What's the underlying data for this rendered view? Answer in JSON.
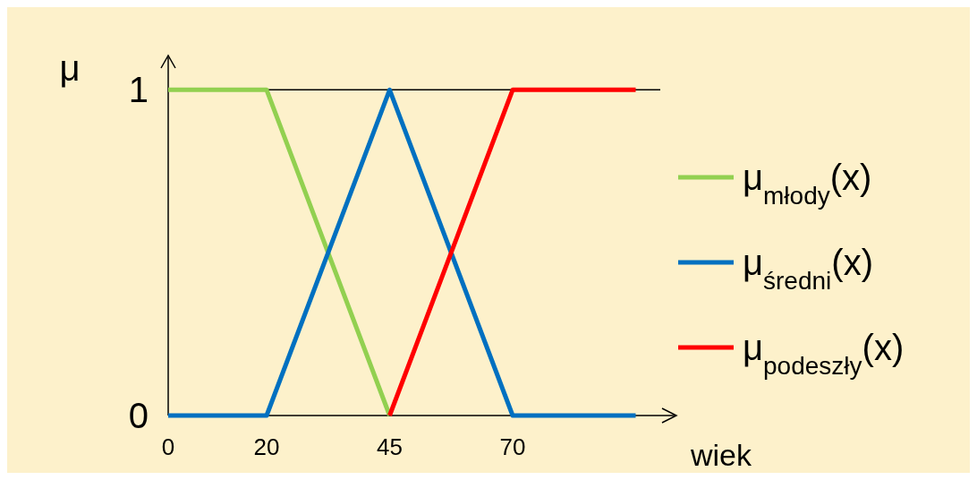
{
  "chart_data": {
    "type": "line",
    "xlabel": "wiek",
    "ylabel": "μ",
    "xlim": [
      0,
      100
    ],
    "xticks": [
      0,
      20,
      45,
      70
    ],
    "ylim": [
      0,
      1.1
    ],
    "yticks": [
      0,
      1
    ],
    "grid": false,
    "legend": "right",
    "line_style": "solid",
    "ref_lines": [
      {
        "axis": "y",
        "value": 1,
        "color": "#000000"
      }
    ],
    "series": [
      {
        "name": "μ$_{młody}$(x)",
        "color": "#92d050",
        "x": [
          0,
          20,
          45
        ],
        "values": [
          1,
          1,
          0
        ]
      },
      {
        "name": "μ$_{średni}$(x)",
        "color": "#0070c0",
        "x": [
          0,
          20,
          45,
          70,
          95
        ],
        "values": [
          0,
          0,
          1,
          0,
          0
        ]
      },
      {
        "name": "μ$_{podeszły}$(x)",
        "color": "#ff0000",
        "x": [
          45,
          70,
          95
        ],
        "values": [
          0,
          1,
          1
        ]
      }
    ]
  }
}
